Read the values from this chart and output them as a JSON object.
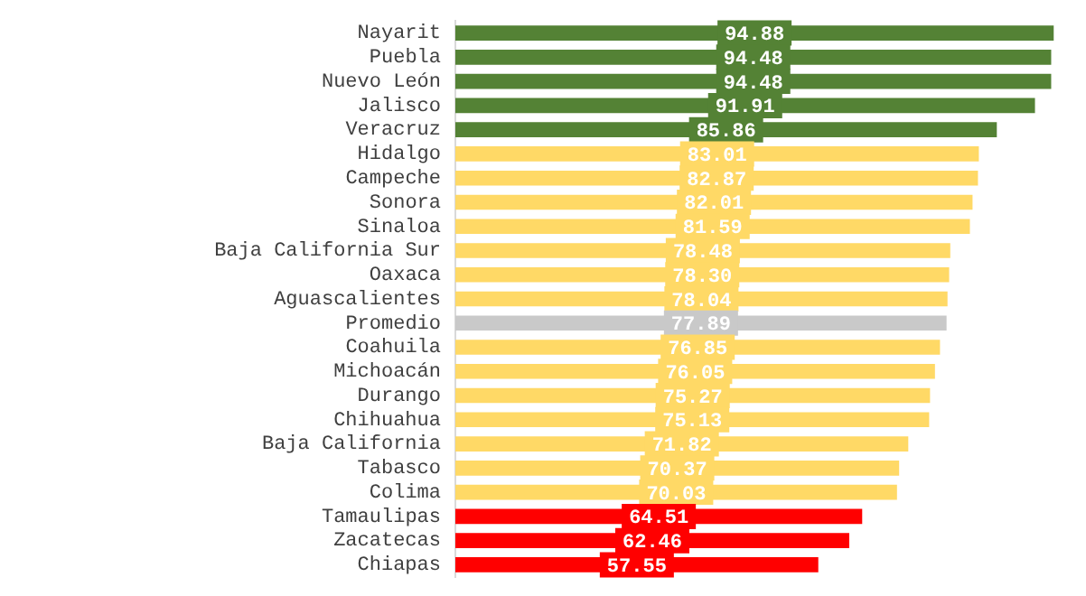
{
  "chart_data": {
    "type": "bar",
    "orientation": "horizontal",
    "categories": [
      "Nayarit",
      "Puebla",
      "Nuevo León",
      "Jalisco",
      "Veracruz",
      "Hidalgo",
      "Campeche",
      "Sonora",
      "Sinaloa",
      "Baja California Sur",
      "Oaxaca",
      "Aguascalientes",
      "Promedio",
      "Coahuila",
      "Michoacán",
      "Durango",
      "Chihuahua",
      "Baja California",
      "Tabasco",
      "Colima",
      "Tamaulipas",
      "Zacatecas",
      "Chiapas"
    ],
    "values": [
      94.88,
      94.48,
      94.48,
      91.91,
      85.86,
      83.01,
      82.87,
      82.01,
      81.59,
      78.48,
      78.3,
      78.04,
      77.89,
      76.85,
      76.05,
      75.27,
      75.13,
      71.82,
      70.37,
      70.03,
      64.51,
      62.46,
      57.55
    ],
    "colors": [
      "#548235",
      "#548235",
      "#548235",
      "#548235",
      "#548235",
      "#ffd966",
      "#ffd966",
      "#ffd966",
      "#ffd966",
      "#ffd966",
      "#ffd966",
      "#ffd966",
      "#c9c9c9",
      "#ffd966",
      "#ffd966",
      "#ffd966",
      "#ffd966",
      "#ffd966",
      "#ffd966",
      "#ffd966",
      "#ff0000",
      "#ff0000",
      "#ff0000"
    ],
    "value_labels": [
      "94.88",
      "94.48",
      "94.48",
      "91.91",
      "85.86",
      "83.01",
      "82.87",
      "82.01",
      "81.59",
      "78.48",
      "78.30",
      "78.04",
      "77.89",
      "76.85",
      "76.05",
      "75.27",
      "75.13",
      "71.82",
      "70.37",
      "70.03",
      "64.51",
      "62.46",
      "57.55"
    ],
    "tick_labels": "y",
    "legend": false
  }
}
